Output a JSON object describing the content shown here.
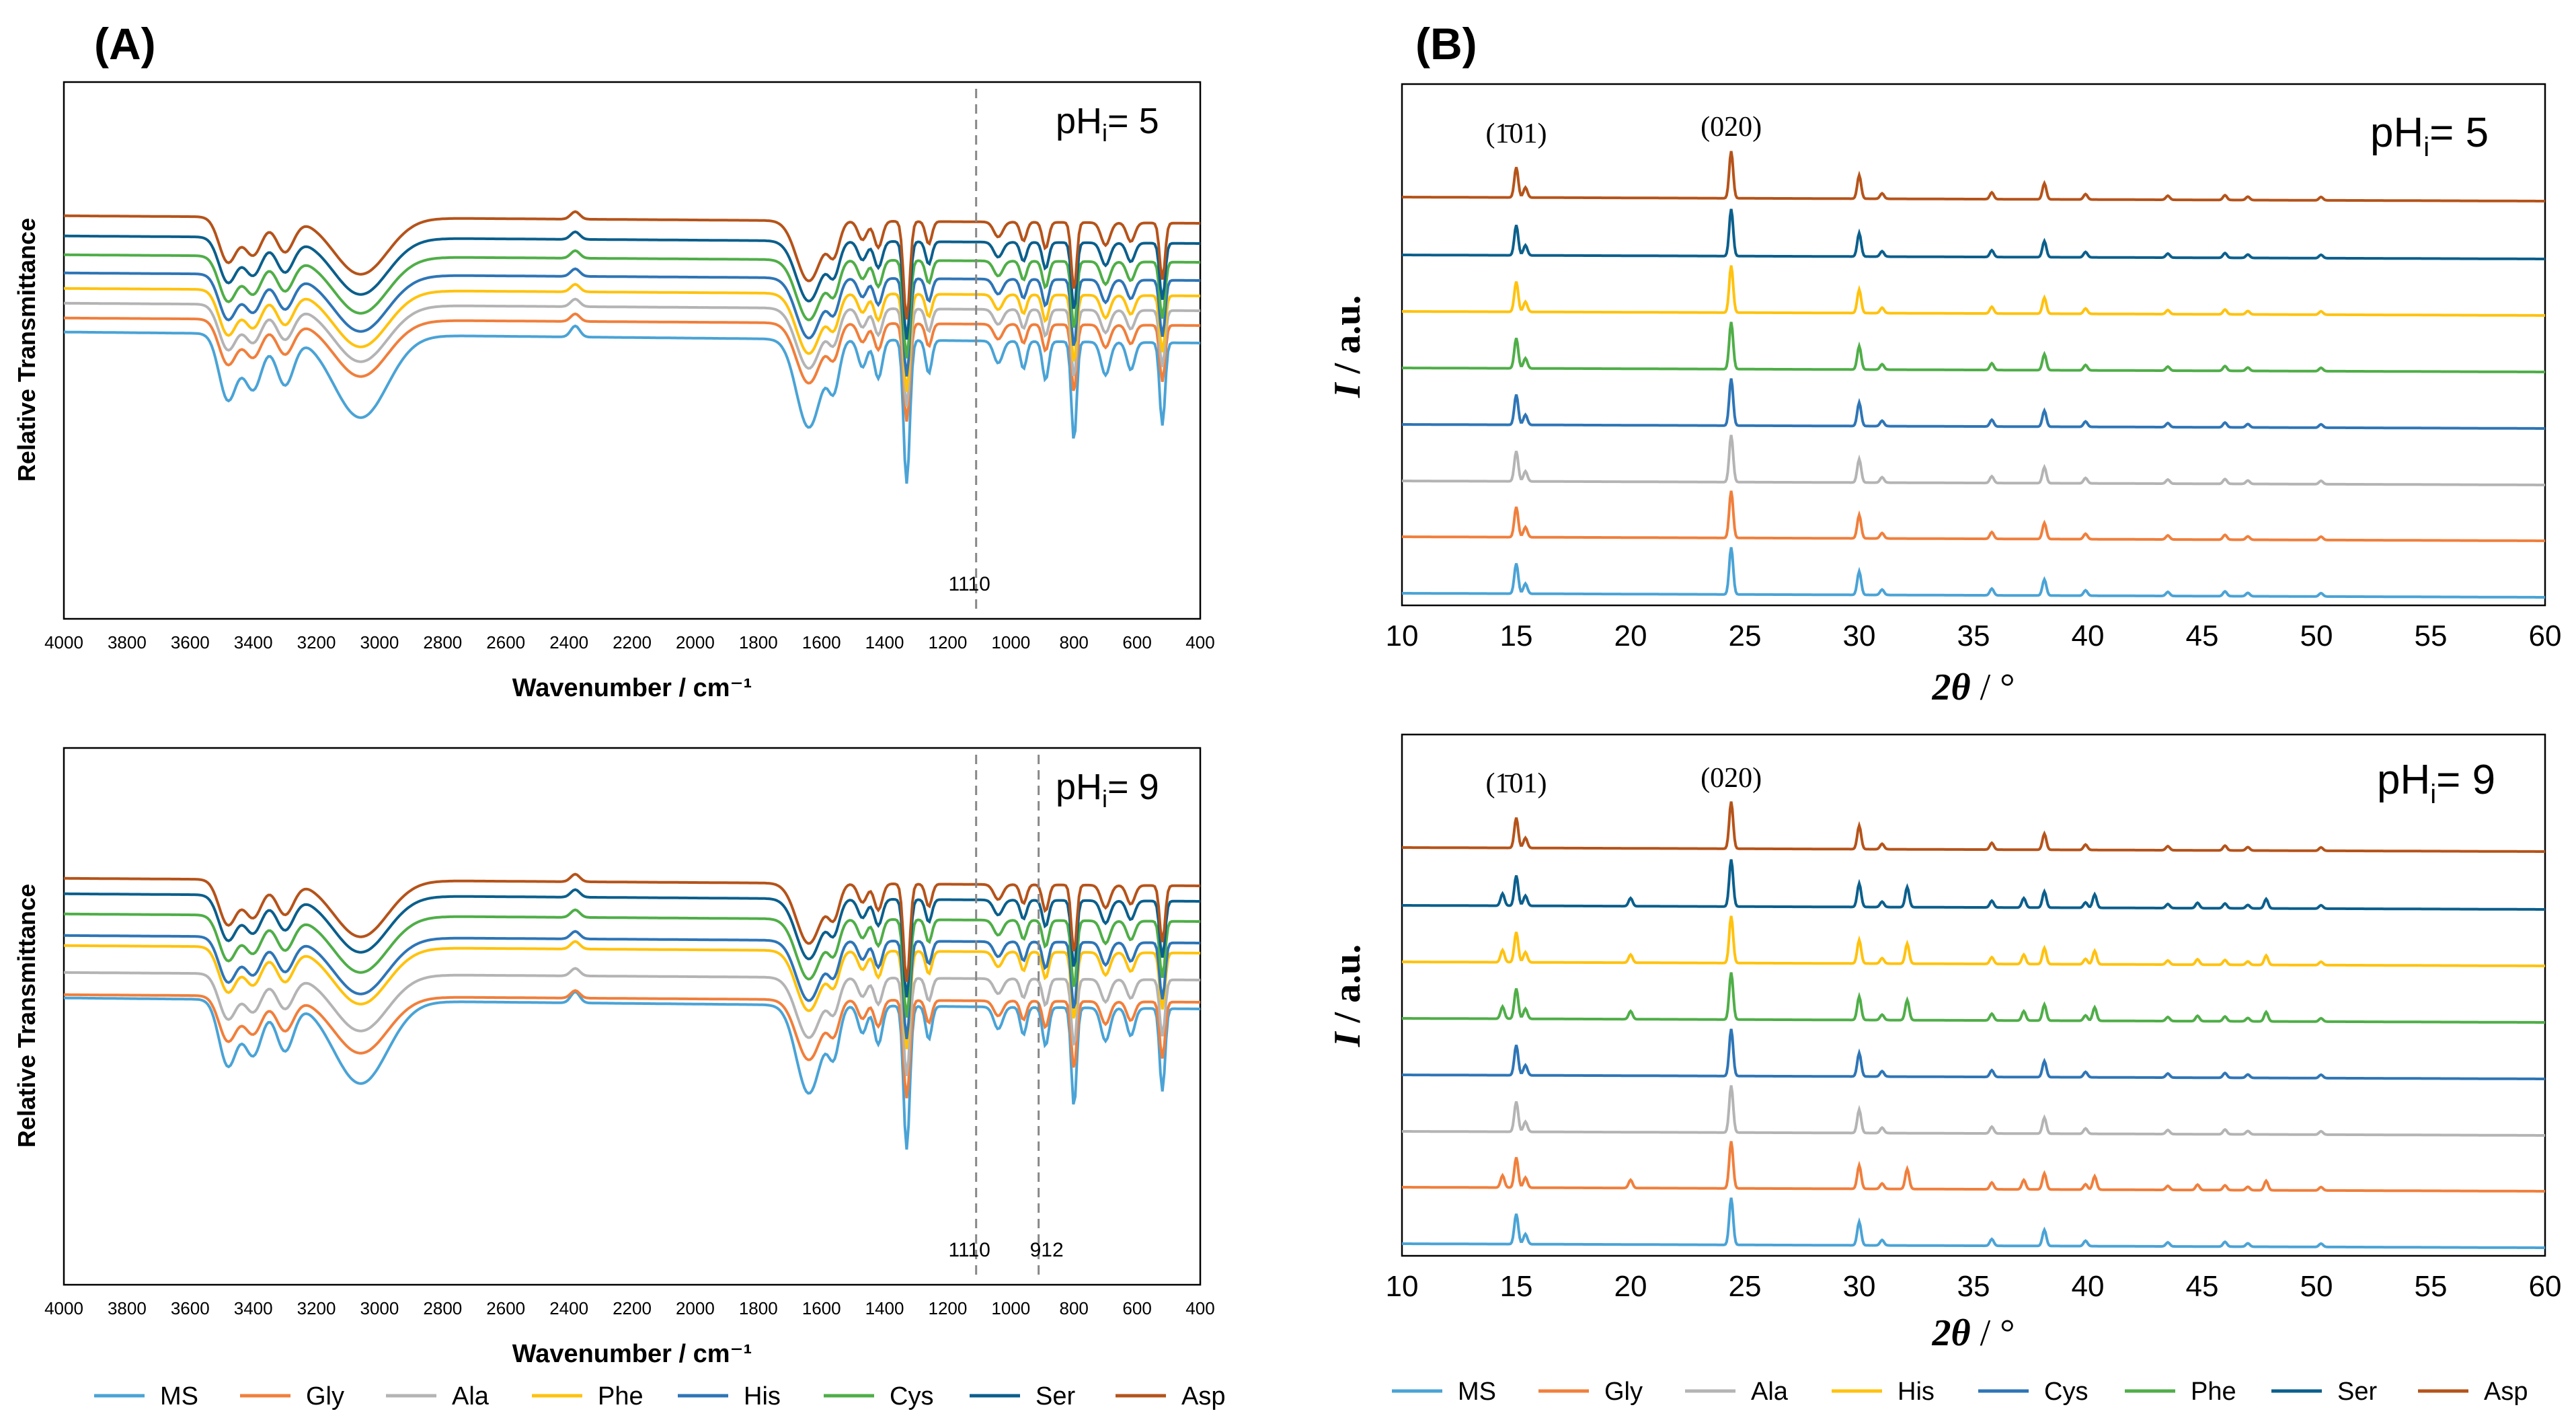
{
  "figure": {
    "panel_a_label": "(A)",
    "panel_b_label": "(B)"
  },
  "legend_a": [
    {
      "name": "MS",
      "color": "#4aa3d6"
    },
    {
      "name": "Gly",
      "color": "#f07f3c"
    },
    {
      "name": "Ala",
      "color": "#b4b4b4"
    },
    {
      "name": "Phe",
      "color": "#ffc20e"
    },
    {
      "name": "His",
      "color": "#2e75b6"
    },
    {
      "name": "Cys",
      "color": "#4fae48"
    },
    {
      "name": "Ser",
      "color": "#0b5f8c"
    },
    {
      "name": "Asp",
      "color": "#b5531a"
    }
  ],
  "legend_b": [
    {
      "name": "MS",
      "color": "#4aa3d6"
    },
    {
      "name": "Gly",
      "color": "#f07f3c"
    },
    {
      "name": "Ala",
      "color": "#b4b4b4"
    },
    {
      "name": "His",
      "color": "#ffc20e"
    },
    {
      "name": "Cys",
      "color": "#2e75b6"
    },
    {
      "name": "Phe",
      "color": "#4fae48"
    },
    {
      "name": "Ser",
      "color": "#0b5f8c"
    },
    {
      "name": "Asp",
      "color": "#b5531a"
    }
  ],
  "chart_data": [
    {
      "type": "line",
      "id": "ftir-ph5",
      "title": "pH",
      "title_sub": "i",
      "title_value": "= 5",
      "xlabel": "Wavenumber / cm⁻¹",
      "ylabel": "Relative Transmittance",
      "xlim": [
        4000,
        400
      ],
      "x_reversed": true,
      "xticks": [
        4000,
        3800,
        3600,
        3400,
        3200,
        3000,
        2800,
        2600,
        2400,
        2200,
        2000,
        1800,
        1600,
        1400,
        1200,
        1000,
        800,
        600,
        400
      ],
      "reference_lines": [
        {
          "x": 1110,
          "label": "1110"
        }
      ],
      "series": [
        "MS",
        "Gly",
        "Ala",
        "Phe",
        "His",
        "Cys",
        "Ser",
        "Asp"
      ]
    },
    {
      "type": "line",
      "id": "ftir-ph9",
      "title": "pH",
      "title_sub": "i",
      "title_value": "= 9",
      "xlabel": "Wavenumber / cm⁻¹",
      "ylabel": "Relative Transmittance",
      "xlim": [
        4000,
        400
      ],
      "x_reversed": true,
      "xticks": [
        4000,
        3800,
        3600,
        3400,
        3200,
        3000,
        2800,
        2600,
        2400,
        2200,
        2000,
        1800,
        1600,
        1400,
        1200,
        1000,
        800,
        600,
        400
      ],
      "reference_lines": [
        {
          "x": 1110,
          "label": "1110"
        },
        {
          "x": 912,
          "label": "912"
        }
      ],
      "series": [
        "MS",
        "Gly",
        "Ala",
        "Phe",
        "His",
        "Cys",
        "Ser",
        "Asp"
      ]
    },
    {
      "type": "line",
      "id": "xrd-ph5",
      "title": "pH",
      "title_sub": "i",
      "title_value": "= 5",
      "xlabel_var": "2θ",
      "xlabel_unit": " / °",
      "ylabel_var": "I",
      "ylabel_unit": " / a.u.",
      "xlim": [
        10,
        60
      ],
      "xticks": [
        10,
        15,
        20,
        25,
        30,
        35,
        40,
        45,
        50,
        55,
        60
      ],
      "annotations": [
        {
          "x": 15.0,
          "label": "(1̄01)"
        },
        {
          "x": 24.4,
          "label": "(020)"
        }
      ],
      "series": [
        "MS",
        "Gly",
        "Ala",
        "His",
        "Cys",
        "Phe",
        "Ser",
        "Asp"
      ]
    },
    {
      "type": "line",
      "id": "xrd-ph9",
      "title": "pH",
      "title_sub": "i",
      "title_value": "= 9",
      "xlabel_var": "2θ",
      "xlabel_unit": " / °",
      "ylabel_var": "I",
      "ylabel_unit": " / a.u.",
      "xlim": [
        10,
        60
      ],
      "xticks": [
        10,
        15,
        20,
        25,
        30,
        35,
        40,
        45,
        50,
        55,
        60
      ],
      "annotations": [
        {
          "x": 15.0,
          "label": "(1̄01)"
        },
        {
          "x": 24.4,
          "label": "(020)"
        }
      ],
      "series": [
        "MS",
        "Gly",
        "Ala",
        "His",
        "Cys",
        "Phe",
        "Ser",
        "Asp"
      ]
    }
  ]
}
